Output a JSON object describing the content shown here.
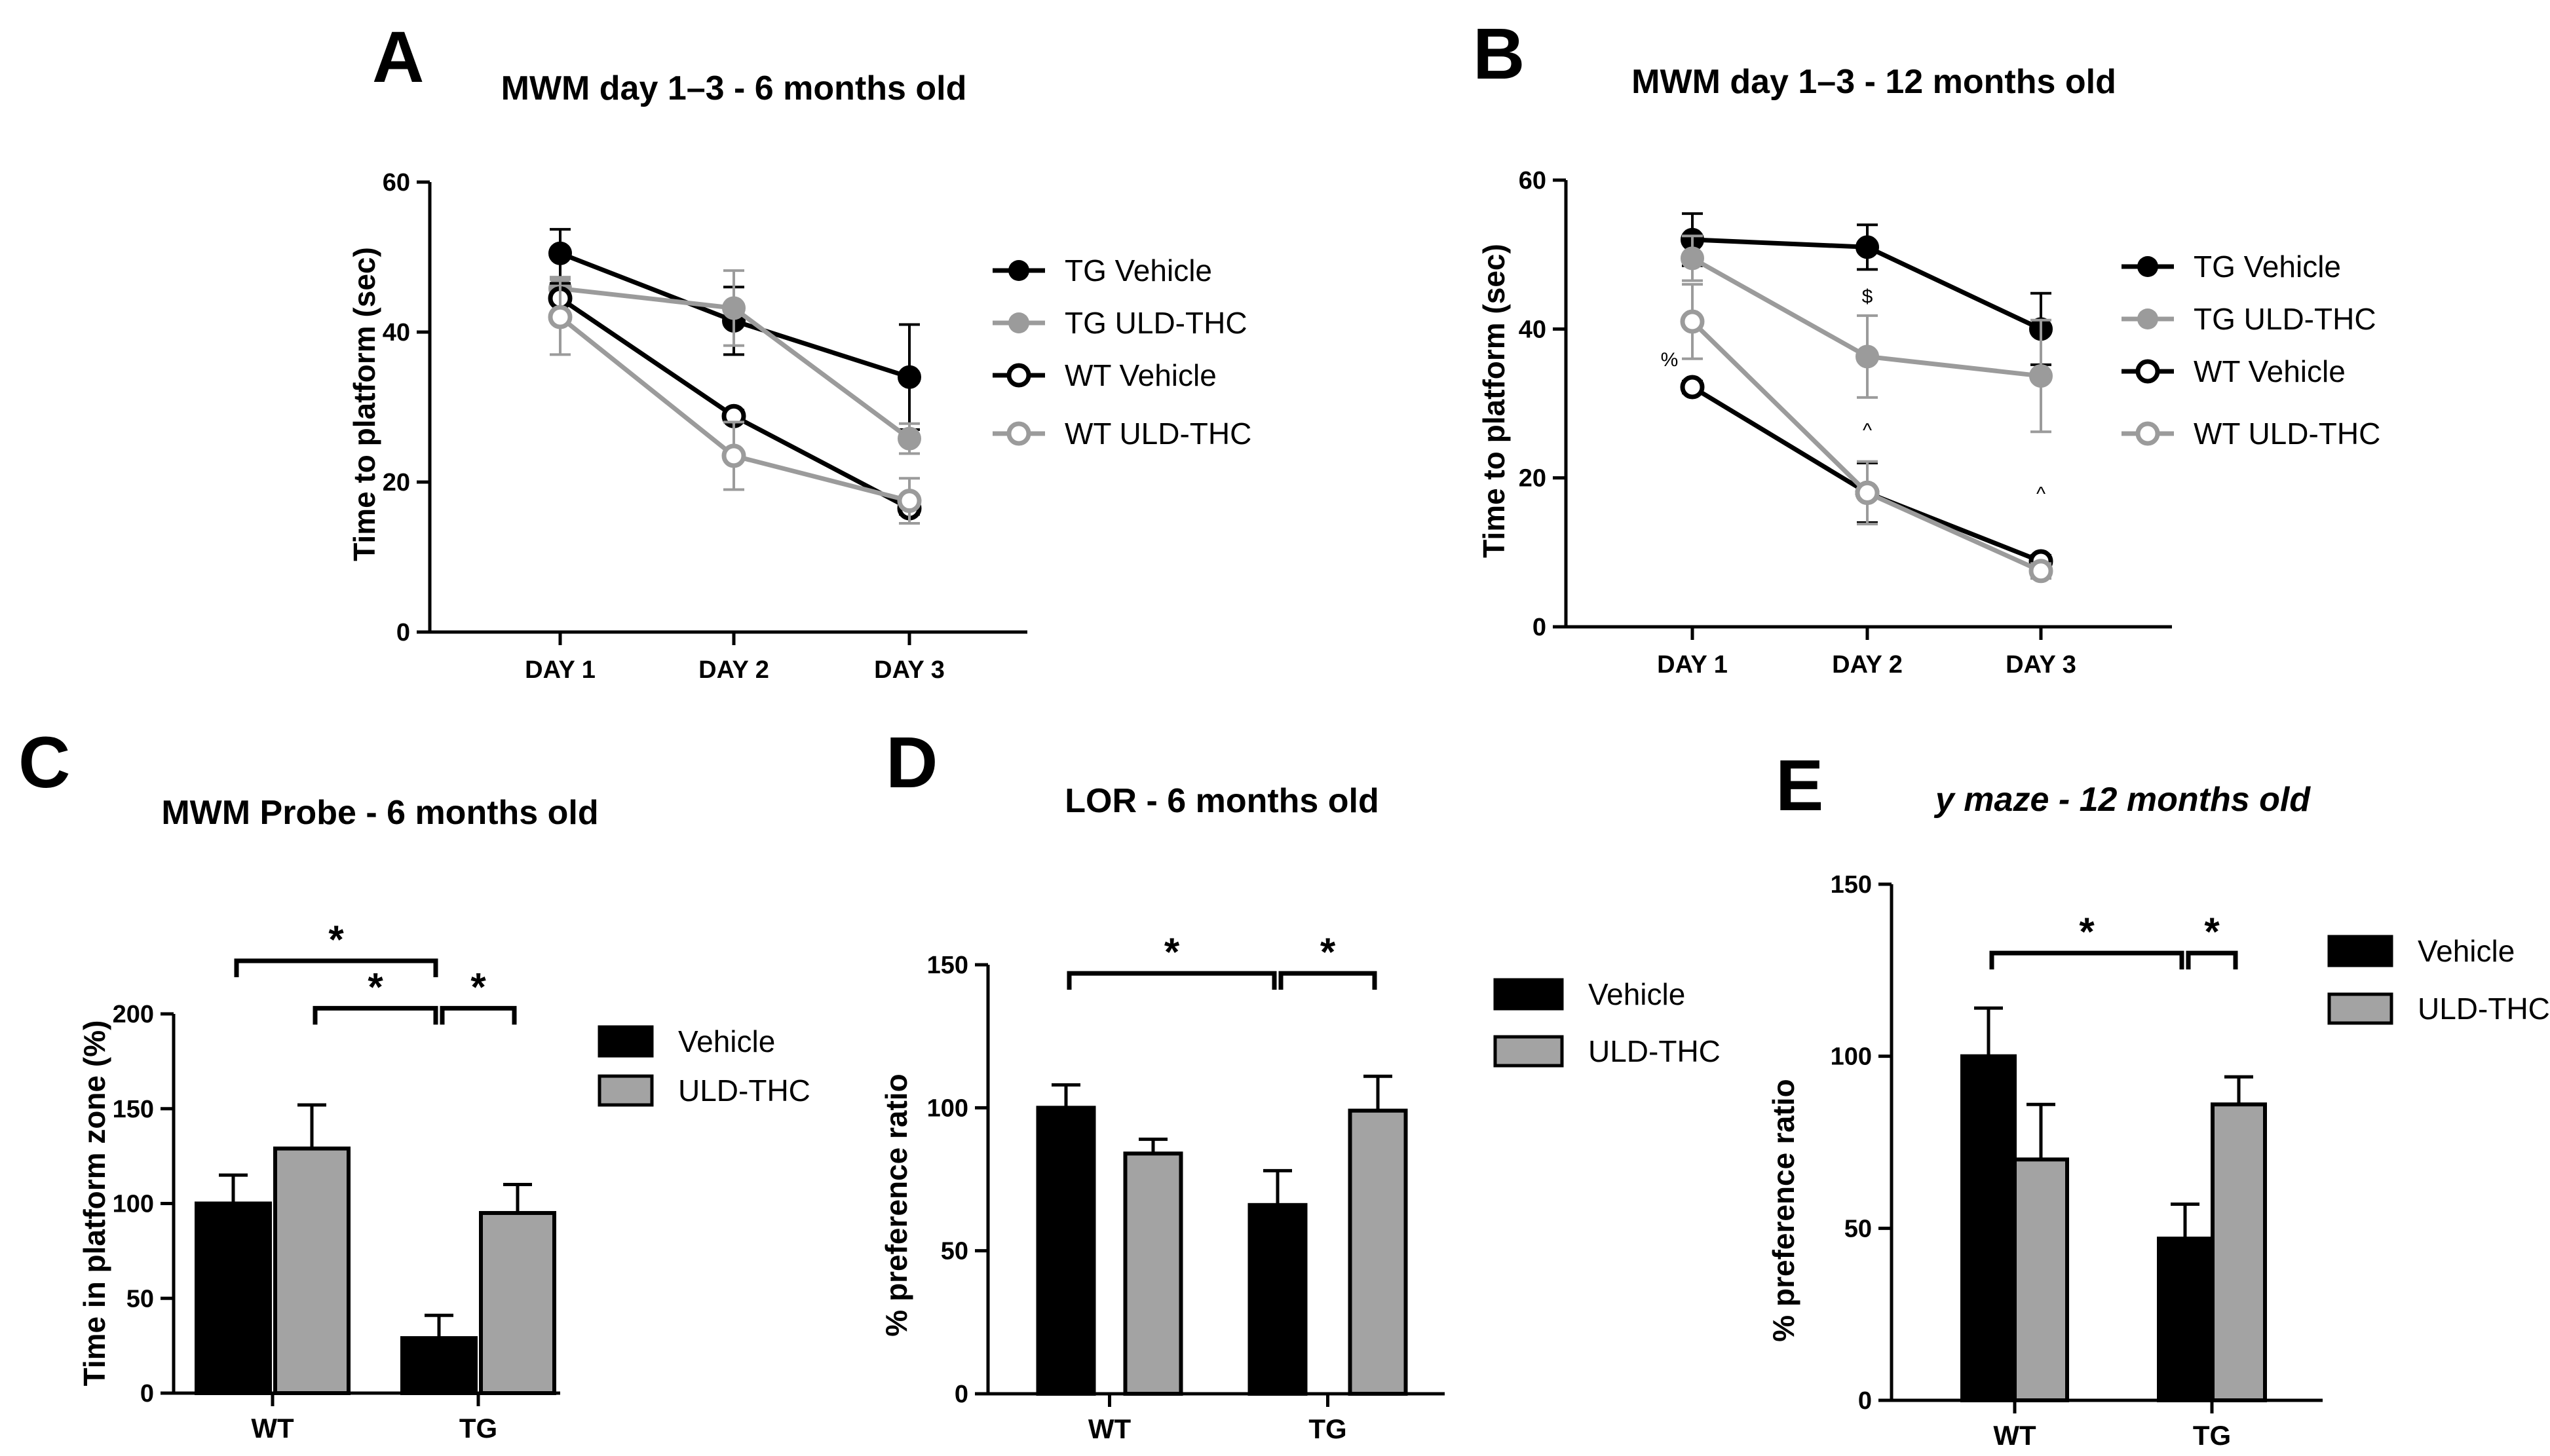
{
  "colors": {
    "tg_vehicle": "#000000",
    "tg_uld_thc": "#9b9b9b",
    "wt_vehicle": "#000000",
    "wt_uld_thc": "#9b9b9b",
    "bar_vehicle": "#000000",
    "bar_uld_thc": "#a3a3a3",
    "axis": "#000000"
  },
  "chart_data": [
    {
      "panel": "A",
      "type": "line",
      "title": "MWM day 1–3 - 6 months old",
      "xlabel": "",
      "ylabel": "Time to platform (sec)",
      "categories": [
        "DAY 1",
        "DAY 2",
        "DAY 3"
      ],
      "ylim": [
        0,
        60
      ],
      "yticks": [
        "0",
        "20",
        "40",
        "60"
      ],
      "legend_position": "right",
      "series": [
        {
          "name": "TG Vehicle",
          "values": [
            50.5,
            41.5,
            34
          ],
          "errors": [
            3.2,
            4.5,
            7
          ],
          "marker": "filled",
          "color": "#000000"
        },
        {
          "name": "TG ULD-THC",
          "values": [
            45.8,
            43.2,
            25.8
          ],
          "errors": [
            1.5,
            5,
            2
          ],
          "marker": "filled",
          "color": "#9b9b9b"
        },
        {
          "name": "WT Vehicle",
          "values": [
            44.5,
            28.8,
            16.5
          ],
          "errors": [
            2,
            0.8,
            0.8
          ],
          "marker": "open",
          "color": "#000000"
        },
        {
          "name": "WT ULD-THC",
          "values": [
            42,
            23.5,
            17.5
          ],
          "errors": [
            5,
            4.5,
            3
          ],
          "marker": "open",
          "color": "#9b9b9b"
        }
      ],
      "annotations": []
    },
    {
      "panel": "B",
      "type": "line",
      "title": "MWM day 1–3 - 12 months old",
      "xlabel": "",
      "ylabel": "Time to platform (sec)",
      "categories": [
        "DAY 1",
        "DAY 2",
        "DAY 3"
      ],
      "ylim": [
        0,
        60
      ],
      "yticks": [
        "0",
        "20",
        "40",
        "60"
      ],
      "legend_position": "right",
      "series": [
        {
          "name": "TG Vehicle",
          "values": [
            52,
            51,
            40
          ],
          "errors": [
            3.5,
            3,
            4.8
          ],
          "marker": "filled",
          "color": "#000000"
        },
        {
          "name": "TG ULD-THC",
          "values": [
            49.5,
            36.3,
            33.7
          ],
          "errors": [
            3,
            5.5,
            7.5
          ],
          "marker": "filled",
          "color": "#9b9b9b"
        },
        {
          "name": "WT Vehicle",
          "values": [
            32.2,
            18,
            8.8
          ],
          "errors": [
            0.8,
            4,
            0.8
          ],
          "marker": "open",
          "color": "#000000"
        },
        {
          "name": "WT ULD-THC",
          "values": [
            41,
            18,
            7.5
          ],
          "errors": [
            5,
            4.2,
            1
          ],
          "marker": "open",
          "color": "#9b9b9b"
        }
      ],
      "annotations": [
        {
          "text": "%",
          "cat": 0,
          "y": 35,
          "dx": -35
        },
        {
          "text": "$",
          "cat": 1,
          "y": 43.5,
          "dx": 0
        },
        {
          "text": "^",
          "cat": 1,
          "y": 25.5,
          "dx": 0
        },
        {
          "text": "^",
          "cat": 2,
          "y": 17,
          "dx": 0
        }
      ]
    },
    {
      "panel": "C",
      "type": "bar",
      "title": "MWM Probe - 6 months old",
      "xlabel": "",
      "ylabel": "Time in platform zone (%)",
      "categories": [
        "WT",
        "TG"
      ],
      "ylim": [
        0,
        200
      ],
      "yticks": [
        "0",
        "50",
        "100",
        "150",
        "200"
      ],
      "legend_position": "right",
      "series": [
        {
          "name": "Vehicle",
          "values": [
            100,
            29
          ],
          "errors": [
            15,
            12
          ],
          "color": "#000000"
        },
        {
          "name": "ULD-THC",
          "values": [
            129,
            95
          ],
          "errors": [
            23,
            15
          ],
          "color": "#a3a3a3"
        }
      ],
      "significance": [
        {
          "from": [
            0,
            0
          ],
          "to": [
            1,
            0
          ],
          "level": 228,
          "label": "*"
        },
        {
          "from": [
            0,
            1
          ],
          "to": [
            1,
            0
          ],
          "level": 203,
          "label": "*"
        },
        {
          "from": [
            1,
            0
          ],
          "to": [
            1,
            1
          ],
          "level": 203,
          "label": "*"
        }
      ]
    },
    {
      "panel": "D",
      "type": "bar",
      "title": "LOR - 6 months old",
      "xlabel": "",
      "ylabel": "% preference ratio",
      "categories": [
        "WT",
        "TG"
      ],
      "ylim": [
        0,
        150
      ],
      "yticks": [
        "0",
        "50",
        "100",
        "150"
      ],
      "legend_position": "right",
      "series": [
        {
          "name": "Vehicle",
          "values": [
            100,
            66
          ],
          "errors": [
            8,
            12
          ],
          "color": "#000000"
        },
        {
          "name": "ULD-THC",
          "values": [
            84,
            99
          ],
          "errors": [
            5,
            12
          ],
          "color": "#a3a3a3"
        }
      ],
      "significance": [
        {
          "from": [
            0,
            0
          ],
          "to": [
            1,
            0
          ],
          "level": 147,
          "label": "*"
        },
        {
          "from": [
            1,
            0
          ],
          "to": [
            1,
            1
          ],
          "level": 147,
          "label": "*"
        }
      ]
    },
    {
      "panel": "E",
      "type": "bar",
      "title": "y maze - 12 months old",
      "title_italic": true,
      "xlabel": "",
      "ylabel": "% preference ratio",
      "categories": [
        "WT",
        "TG"
      ],
      "ylim": [
        0,
        150
      ],
      "yticks": [
        "0",
        "50",
        "100",
        "150"
      ],
      "legend_position": "right",
      "series": [
        {
          "name": "Vehicle",
          "values": [
            100,
            47
          ],
          "errors": [
            14,
            10
          ],
          "color": "#000000"
        },
        {
          "name": "ULD-THC",
          "values": [
            70,
            86
          ],
          "errors": [
            16,
            8
          ],
          "color": "#a3a3a3"
        }
      ],
      "significance": [
        {
          "from": [
            0,
            0
          ],
          "to": [
            1,
            0
          ],
          "level": 130,
          "label": "*"
        },
        {
          "from": [
            1,
            0
          ],
          "to": [
            1,
            1
          ],
          "level": 130,
          "label": "*"
        }
      ]
    }
  ]
}
